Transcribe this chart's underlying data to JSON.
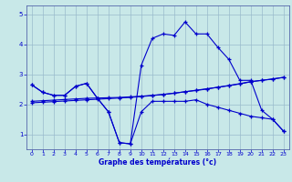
{
  "xlabel": "Graphe des températures (°c)",
  "x": [
    0,
    1,
    2,
    3,
    4,
    5,
    6,
    7,
    8,
    9,
    10,
    11,
    12,
    13,
    14,
    15,
    16,
    17,
    18,
    19,
    20,
    21,
    22,
    23
  ],
  "curve_a": [
    2.65,
    2.4,
    2.3,
    2.3,
    2.6,
    2.7,
    2.2,
    1.75,
    0.72,
    0.68,
    3.3,
    4.2,
    4.35,
    4.3,
    4.75,
    4.35,
    4.35,
    3.9,
    3.5,
    2.8,
    2.8,
    1.8,
    1.5,
    1.1
  ],
  "curve_b": [
    2.65,
    2.4,
    2.3,
    2.3,
    2.6,
    2.7,
    2.2,
    1.75,
    0.72,
    0.68,
    1.75,
    2.1,
    2.1,
    2.1,
    2.1,
    2.15,
    2.0,
    1.9,
    1.8,
    1.7,
    1.6,
    1.55,
    1.5,
    1.1
  ],
  "trend1": [
    2.1,
    2.12,
    2.14,
    2.16,
    2.18,
    2.2,
    2.21,
    2.22,
    2.23,
    2.25,
    2.27,
    2.3,
    2.33,
    2.37,
    2.42,
    2.46,
    2.51,
    2.57,
    2.62,
    2.68,
    2.75,
    2.8,
    2.84,
    2.9
  ],
  "trend2": [
    2.05,
    2.07,
    2.09,
    2.11,
    2.13,
    2.15,
    2.17,
    2.19,
    2.21,
    2.23,
    2.26,
    2.29,
    2.33,
    2.37,
    2.42,
    2.47,
    2.52,
    2.57,
    2.63,
    2.69,
    2.76,
    2.8,
    2.85,
    2.9
  ],
  "line_color": "#0000cc",
  "bg_color": "#c8e8e8",
  "grid_color": "#99bbcc",
  "ylim": [
    0.5,
    5.3
  ],
  "xlim": [
    -0.5,
    23.5
  ],
  "yticks": [
    1,
    2,
    3,
    4,
    5
  ],
  "xticks": [
    0,
    1,
    2,
    3,
    4,
    5,
    6,
    7,
    8,
    9,
    10,
    11,
    12,
    13,
    14,
    15,
    16,
    17,
    18,
    19,
    20,
    21,
    22,
    23
  ]
}
